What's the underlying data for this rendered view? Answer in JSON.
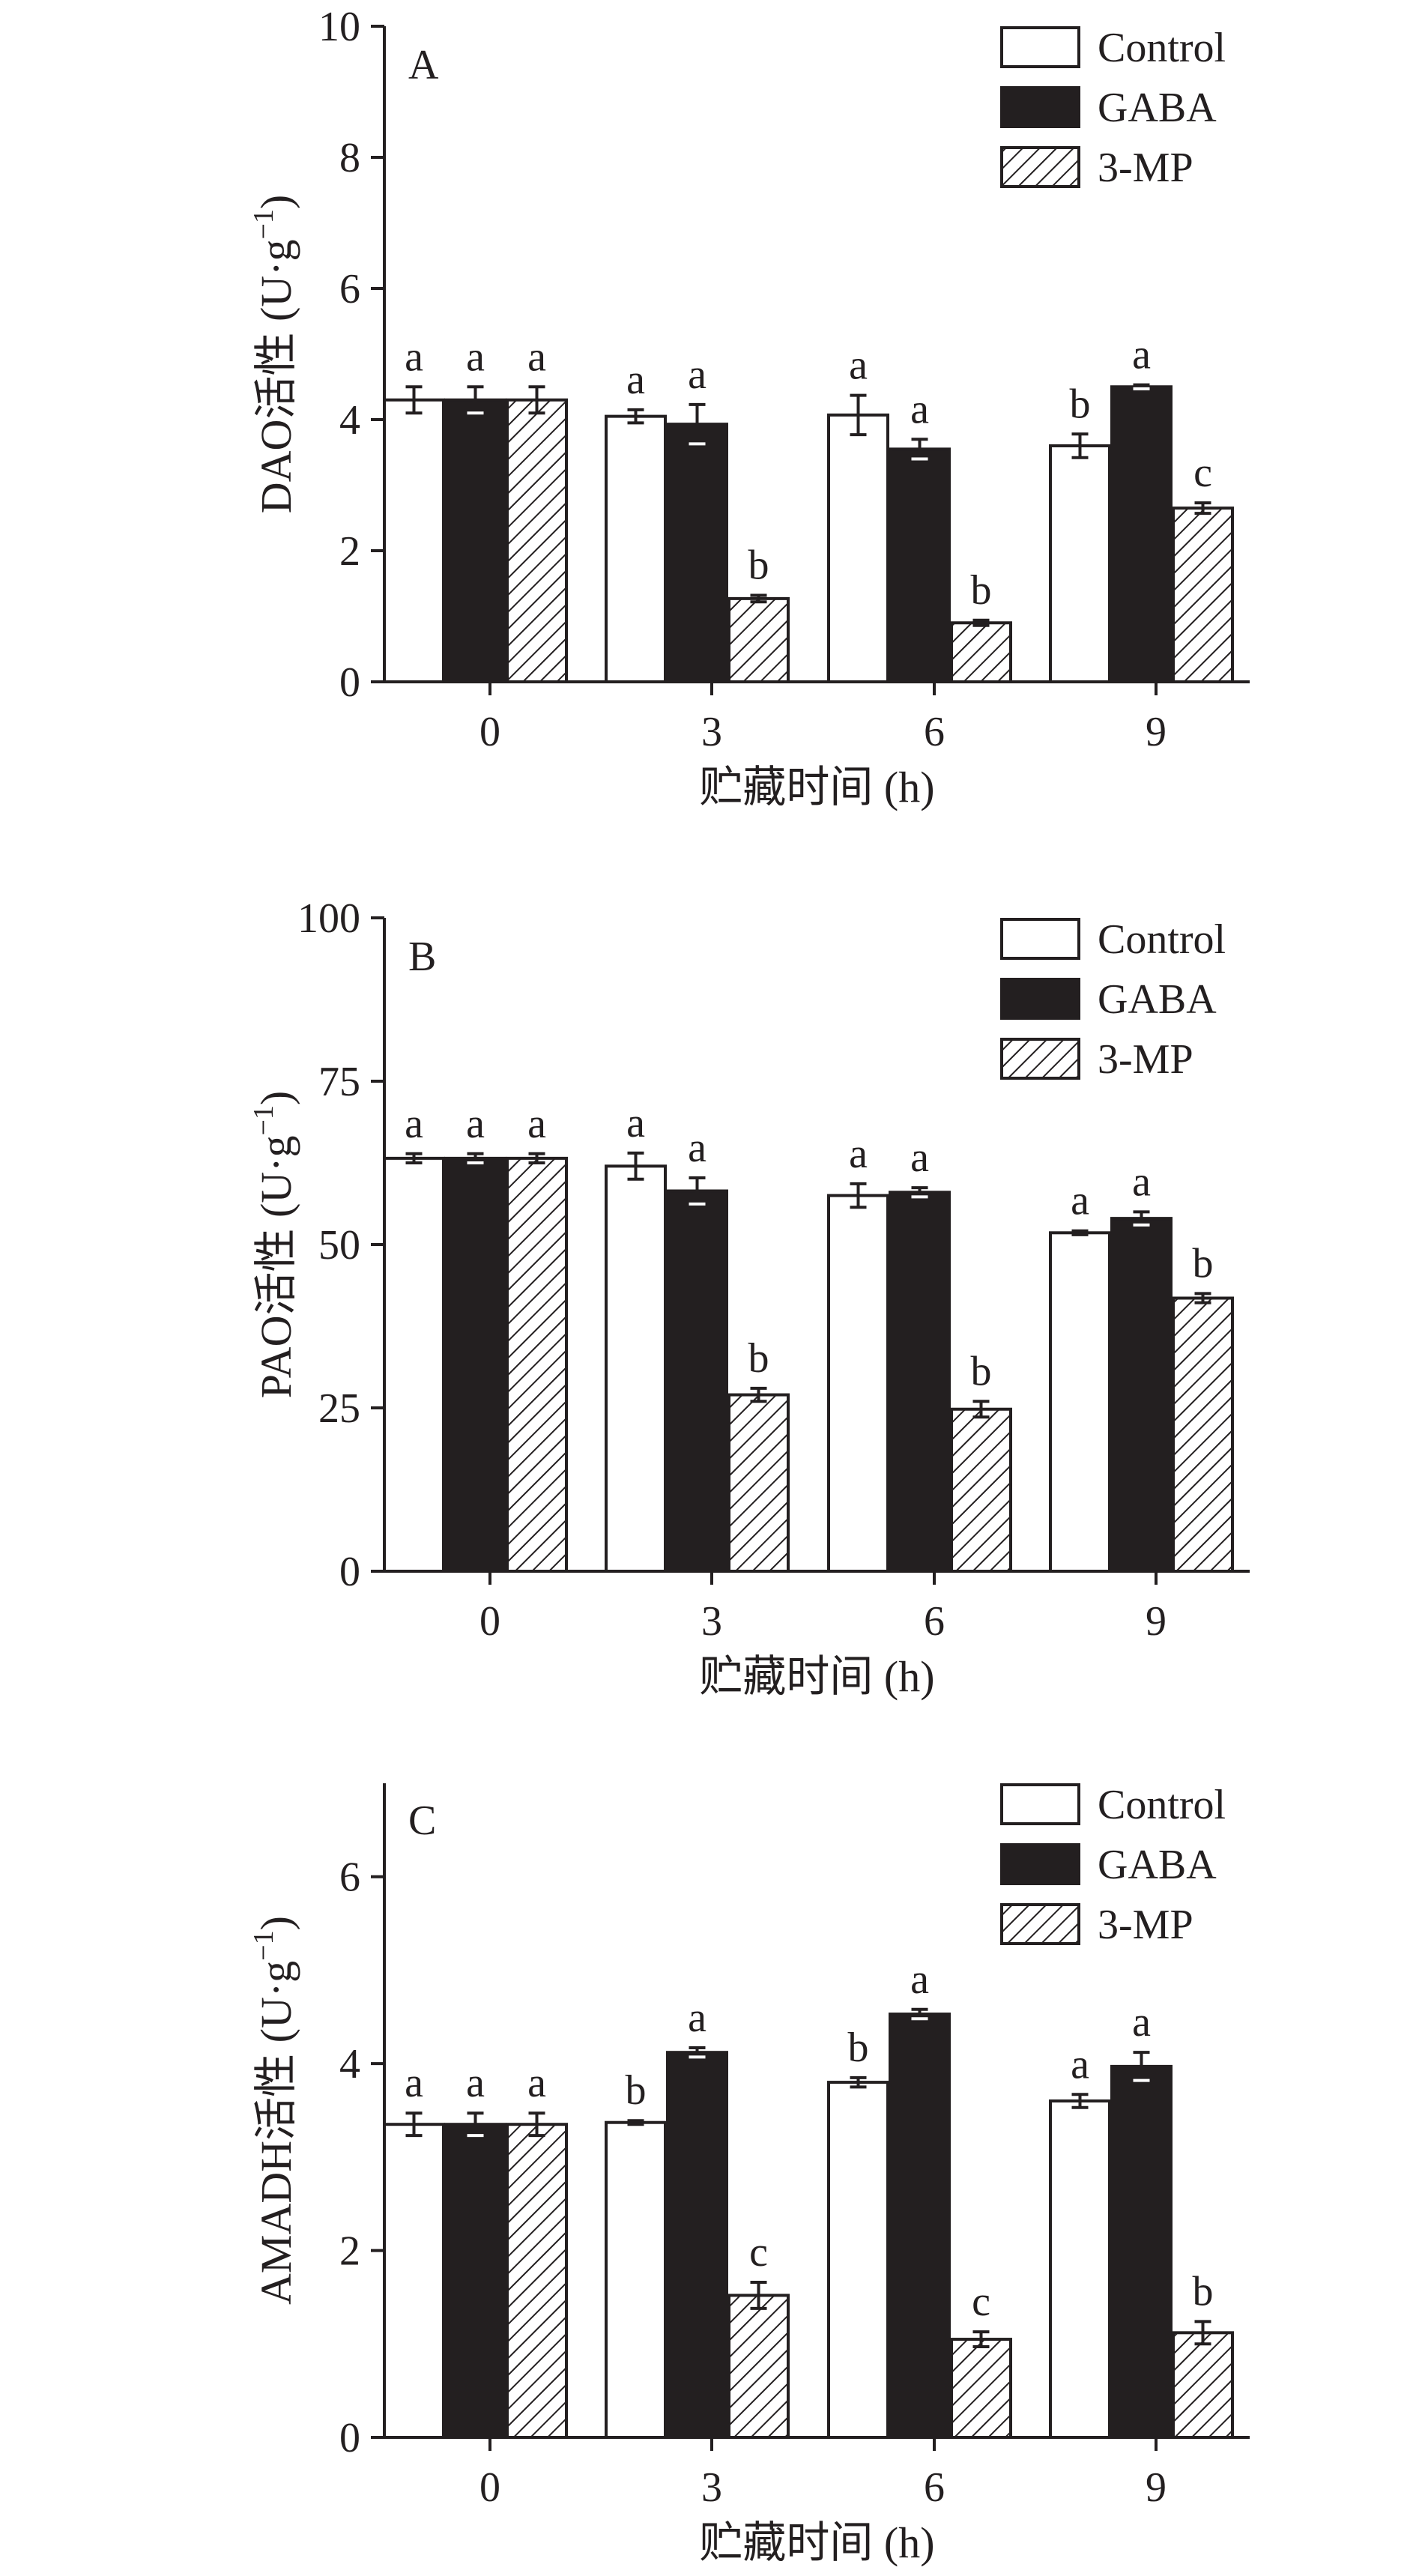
{
  "chart_data": [
    {
      "type": "bar",
      "panel_label": "A",
      "title": "",
      "xlabel": "贮藏时间 (h)",
      "ylabel_main": "DAO活性 (U·g",
      "ylabel_sup": "−1",
      "ylabel_tail": ")",
      "ylim": [
        0,
        10
      ],
      "yticks": [
        0,
        2,
        4,
        6,
        8,
        10
      ],
      "categories": [
        "0",
        "3",
        "6",
        "9"
      ],
      "legend_position": "top-right",
      "series": [
        {
          "name": "Control",
          "values": [
            4.3,
            4.05,
            4.07,
            3.6
          ],
          "errors": [
            0.2,
            0.1,
            0.3,
            0.18
          ],
          "letters": [
            "a",
            "a",
            "a",
            "b"
          ]
        },
        {
          "name": "GABA",
          "values": [
            4.3,
            3.93,
            3.55,
            4.5
          ],
          "errors": [
            0.2,
            0.3,
            0.15,
            0.03
          ],
          "letters": [
            "a",
            "a",
            "a",
            "a"
          ]
        },
        {
          "name": "3-MP",
          "values": [
            4.3,
            1.27,
            0.9,
            2.65
          ],
          "errors": [
            0.2,
            0.05,
            0.04,
            0.08
          ],
          "letters": [
            "a",
            "b",
            "b",
            "c"
          ]
        }
      ]
    },
    {
      "type": "bar",
      "panel_label": "B",
      "title": "",
      "xlabel": "贮藏时间 (h)",
      "ylabel_main": "PAO活性 (U·g",
      "ylabel_sup": "−1",
      "ylabel_tail": ")",
      "ylim": [
        0,
        100
      ],
      "yticks": [
        0,
        25,
        50,
        75,
        100
      ],
      "categories": [
        "0",
        "3",
        "6",
        "9"
      ],
      "legend_position": "top-right",
      "series": [
        {
          "name": "Control",
          "values": [
            63.2,
            62.0,
            57.5,
            51.8
          ],
          "errors": [
            0.7,
            2.0,
            1.8,
            0.3
          ],
          "letters": [
            "a",
            "a",
            "a",
            "a"
          ]
        },
        {
          "name": "GABA",
          "values": [
            63.2,
            58.2,
            58.0,
            54.0
          ],
          "errors": [
            0.7,
            2.0,
            0.7,
            1.0
          ],
          "letters": [
            "a",
            "a",
            "a",
            "a"
          ]
        },
        {
          "name": "3-MP",
          "values": [
            63.2,
            27.0,
            24.8,
            41.8
          ],
          "errors": [
            0.7,
            1.0,
            1.2,
            0.7
          ],
          "letters": [
            "a",
            "b",
            "b",
            "b"
          ]
        }
      ]
    },
    {
      "type": "bar",
      "panel_label": "C",
      "title": "",
      "xlabel": "贮藏时间 (h)",
      "ylabel_main": "AMADH活性 (U·g",
      "ylabel_sup": "−1",
      "ylabel_tail": ")",
      "ylim": [
        0,
        7
      ],
      "yticks": [
        0,
        2,
        4,
        6
      ],
      "categories": [
        "0",
        "3",
        "6",
        "9"
      ],
      "legend_position": "top-right",
      "series": [
        {
          "name": "Control",
          "values": [
            3.35,
            3.37,
            3.8,
            3.6
          ],
          "errors": [
            0.12,
            0.02,
            0.05,
            0.07
          ],
          "letters": [
            "a",
            "b",
            "b",
            "a"
          ]
        },
        {
          "name": "GABA",
          "values": [
            3.35,
            4.12,
            4.53,
            3.97
          ],
          "errors": [
            0.12,
            0.05,
            0.05,
            0.15
          ],
          "letters": [
            "a",
            "a",
            "a",
            "a"
          ]
        },
        {
          "name": "3-MP",
          "values": [
            3.35,
            1.52,
            1.05,
            1.12
          ],
          "errors": [
            0.12,
            0.14,
            0.08,
            0.12
          ],
          "letters": [
            "a",
            "c",
            "c",
            "b"
          ]
        }
      ]
    }
  ]
}
